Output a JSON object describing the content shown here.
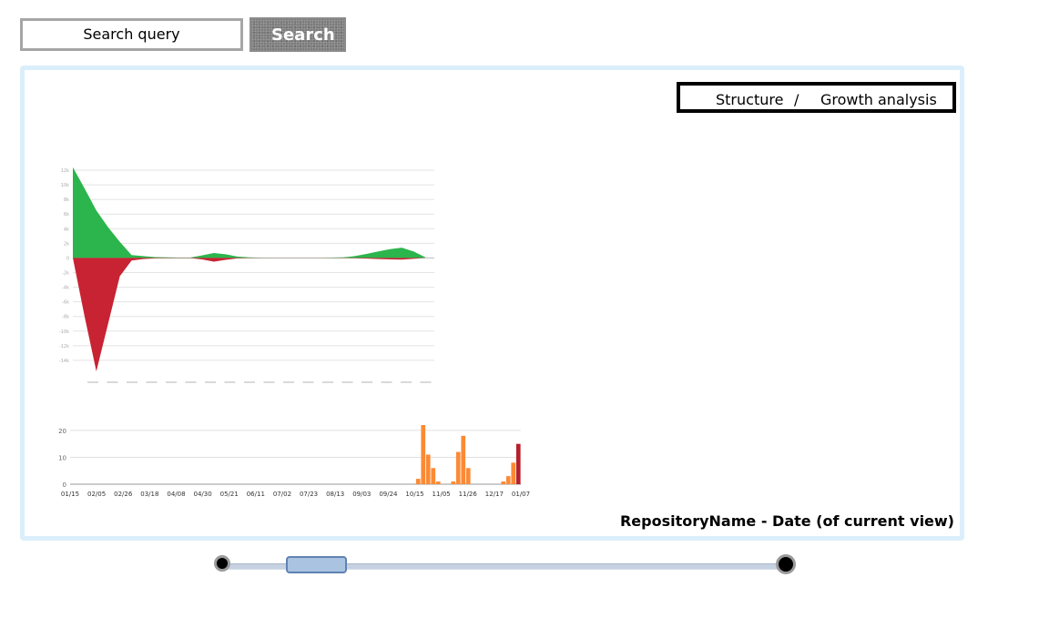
{
  "search": {
    "placeholder": "Search query",
    "button_label": "Search"
  },
  "view_switch": {
    "structure_label": "Structure",
    "separator": "/",
    "growth_label": "Growth analysis"
  },
  "footer": {
    "caption": "RepositoryName - Date (of current view)"
  },
  "colors": {
    "added": "#2bb54c",
    "removed": "#c82333",
    "commits": "#fb8a36",
    "commits_current": "#b71f2a",
    "panel_border": "#dbeefb",
    "slider_handle": "#a9c3e1"
  },
  "chart_data": [
    {
      "type": "area",
      "title": "",
      "ylim": [
        -16000,
        12000
      ],
      "y_ticks": [
        12000,
        10000,
        8000,
        6000,
        4000,
        2000,
        0,
        -2000,
        -4000,
        -6000,
        -8000,
        -10000,
        -12000,
        -14000
      ],
      "series": [
        {
          "values_index": "x",
          "x": [
            0,
            1,
            2,
            3,
            4,
            5,
            6,
            7,
            8,
            9,
            10,
            11,
            12,
            13,
            14,
            15,
            16,
            17,
            18,
            19,
            20,
            21,
            22,
            23,
            24,
            25,
            26,
            27,
            28,
            29,
            30
          ],
          "y": [
            12400,
            9500,
            6500,
            4200,
            2200,
            400,
            250,
            120,
            80,
            50,
            60,
            350,
            680,
            500,
            200,
            80,
            40,
            30,
            20,
            15,
            20,
            30,
            50,
            80,
            250,
            550,
            900,
            1200,
            1400,
            900,
            100
          ]
        },
        {
          "values_index": "x",
          "x": [
            0,
            1,
            2,
            3,
            4,
            5,
            6,
            7,
            8,
            9,
            10,
            11,
            12,
            13,
            14,
            15,
            16,
            17,
            18,
            19,
            20,
            21,
            22,
            23,
            24,
            25,
            26,
            27,
            28,
            29,
            30
          ],
          "y": [
            0,
            -8000,
            -15500,
            -9000,
            -2500,
            -350,
            -150,
            -60,
            -40,
            -30,
            -30,
            -200,
            -500,
            -250,
            -60,
            -20,
            -15,
            -10,
            -10,
            -10,
            -10,
            -10,
            -15,
            -20,
            -40,
            -80,
            -150,
            -200,
            -220,
            -120,
            0
          ]
        }
      ]
    },
    {
      "type": "bar",
      "title": "",
      "ylim": [
        0,
        22
      ],
      "y_ticks": [
        0,
        10,
        20
      ],
      "tick_labels": [
        "01/15",
        "02/05",
        "02/26",
        "03/18",
        "04/08",
        "04/30",
        "05/21",
        "06/11",
        "07/02",
        "07/23",
        "08/13",
        "09/03",
        "09/24",
        "10/15",
        "11/05",
        "11/26",
        "12/17",
        "01/07"
      ],
      "values": [
        0,
        0,
        0,
        0,
        0,
        0,
        0,
        0,
        0,
        0,
        0,
        0,
        0,
        0,
        0,
        0,
        0,
        0,
        0,
        0,
        0,
        0,
        0,
        0,
        0,
        0,
        0,
        0,
        0,
        0,
        0,
        0,
        0,
        0,
        0,
        0,
        0,
        0,
        0,
        0,
        0,
        0,
        0,
        0,
        0,
        0,
        0,
        0,
        0,
        0,
        0,
        0,
        0,
        0,
        0,
        0,
        0,
        0,
        0,
        0,
        0,
        0,
        0,
        0,
        0,
        0,
        0,
        0,
        0,
        2,
        22,
        11,
        6,
        1,
        0,
        0,
        1,
        12,
        18,
        6,
        0,
        0,
        0,
        0,
        0,
        0,
        1,
        3,
        8,
        15
      ],
      "current_index": 89
    }
  ]
}
